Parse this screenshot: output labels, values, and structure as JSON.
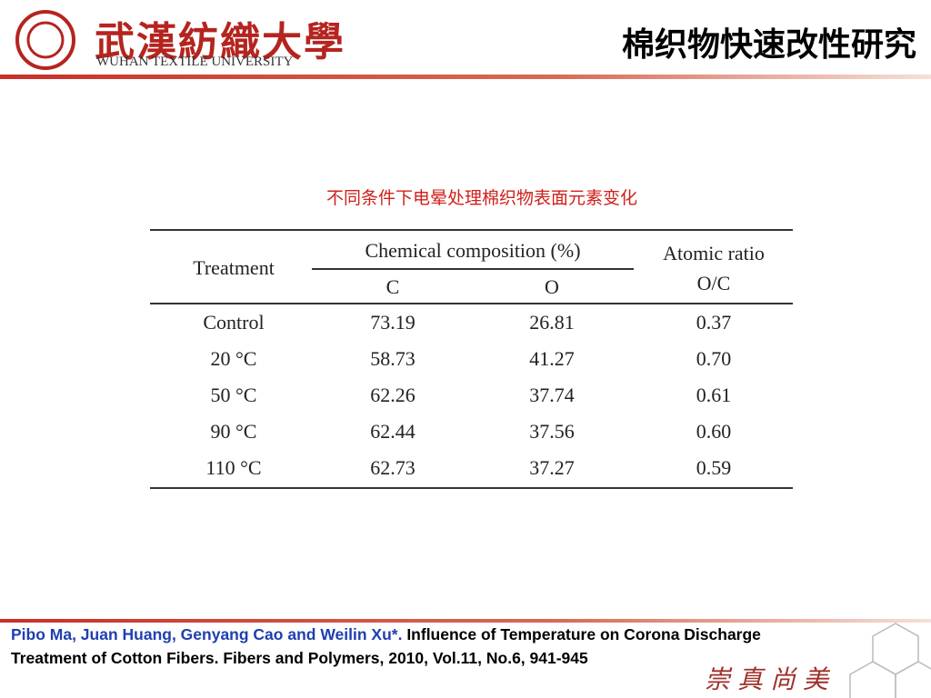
{
  "header": {
    "logo_chinese": "武漢紡織大學",
    "logo_english": "WUHAN TEXTILE UNIVERSITY",
    "title": "棉织物快速改性研究"
  },
  "table": {
    "caption": "不同条件下电晕处理棉织物表面元素变化",
    "headers": {
      "treatment": "Treatment",
      "composition": "Chemical composition (%)",
      "c": "C",
      "o": "O",
      "ratio": "Atomic ratio",
      "ratio_unit": "O/C"
    },
    "rows": [
      [
        "Control",
        "73.19",
        "26.81",
        "0.37"
      ],
      [
        "20 °C",
        "58.73",
        "41.27",
        "0.70"
      ],
      [
        "50 °C",
        "62.26",
        "37.74",
        "0.61"
      ],
      [
        "90 °C",
        "62.44",
        "37.56",
        "0.60"
      ],
      [
        "110 °C",
        "62.73",
        "37.27",
        "0.59"
      ]
    ]
  },
  "citation": {
    "authors": "Pibo Ma, Juan Huang, Genyang Cao and Weilin Xu*.",
    "reference": "Influence of Temperature on Corona Discharge Treatment of Cotton Fibers. Fibers and Polymers, 2010, Vol.11, No.6, 941-945"
  },
  "footer": {
    "motto": "崇真尚美"
  }
}
